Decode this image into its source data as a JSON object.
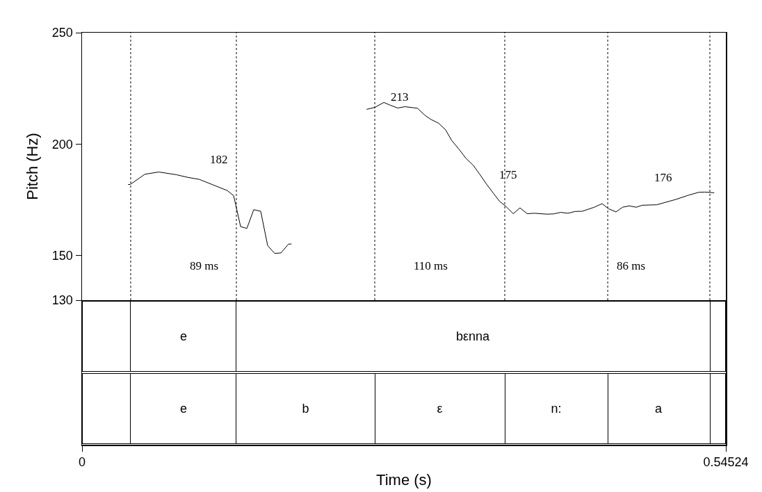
{
  "chart_data": [
    {
      "type": "line",
      "ylabel": "Pitch (Hz)",
      "xlim": [
        0,
        0.54524
      ],
      "ylim": [
        130,
        250
      ],
      "yticks": [
        130,
        150,
        200,
        250
      ],
      "tick_labels": "y",
      "marker": "none",
      "series": [
        {
          "color": "#000000",
          "x": [
            0.039,
            0.0408,
            0.0532,
            0.065,
            0.0797,
            0.0895,
            0.0993,
            0.1111,
            0.1229,
            0.1284,
            0.1343,
            0.1396,
            0.1454,
            0.1513,
            0.1572,
            0.1631,
            0.1684,
            0.1749,
            0.1774,
            0.2,
            0.241,
            0.2481,
            0.2556,
            0.2613,
            0.2674,
            0.2735,
            0.284,
            0.2907,
            0.2958,
            0.3019,
            0.3079,
            0.3131,
            0.3191,
            0.3252,
            0.3313,
            0.3364,
            0.3425,
            0.3486,
            0.3537,
            0.3587,
            0.3652,
            0.3709,
            0.377,
            0.3831,
            0.3933,
            0.3993,
            0.4055,
            0.4115,
            0.4176,
            0.4237,
            0.4338,
            0.4404,
            0.446,
            0.4522,
            0.4578,
            0.4633,
            0.4694,
            0.4745,
            0.4867,
            0.5029,
            0.5131,
            0.5222,
            0.5272,
            0.5354
          ],
          "values": [
            181.9,
            181.9,
            186.5,
            187.5,
            186.3,
            185.1,
            184.2,
            181.7,
            179.2,
            176.9,
            163,
            162.2,
            170.6,
            169.9,
            154.5,
            151,
            151.2,
            155.2,
            155.2,
            null,
            215.6,
            216.5,
            218.7,
            217.4,
            216.2,
            216.8,
            216.1,
            212.8,
            211,
            209.4,
            206.4,
            201.6,
            197.8,
            193.6,
            190.5,
            186.8,
            182.1,
            177.8,
            174.3,
            172.2,
            168.8,
            171.4,
            168.8,
            169,
            168.6,
            168.7,
            169.4,
            169,
            169.8,
            169.9,
            171.7,
            173.3,
            171,
            169.6,
            171.7,
            172.3,
            171.7,
            172.6,
            172.8,
            175.2,
            177,
            178.4,
            178.5,
            178.2
          ]
        }
      ],
      "ref_lines": [
        {
          "axis": "x",
          "value": 0.0412,
          "line_style": "dotted",
          "color": "#000000"
        },
        {
          "axis": "x",
          "value": 0.1307,
          "line_style": "dotted",
          "color": "#000000"
        },
        {
          "axis": "x",
          "value": 0.2479,
          "line_style": "dotted",
          "color": "#000000"
        },
        {
          "axis": "x",
          "value": 0.358,
          "line_style": "dotted",
          "color": "#000000"
        },
        {
          "axis": "x",
          "value": 0.4452,
          "line_style": "dotted",
          "color": "#000000"
        },
        {
          "axis": "x",
          "value": 0.5317,
          "line_style": "dotted",
          "color": "#000000"
        }
      ],
      "annotations": [
        "182",
        "213",
        "175",
        "176",
        "89 ms",
        "110 ms",
        "86 ms"
      ]
    },
    {
      "type": "bar",
      "orientation": "horizontal",
      "stacked": true,
      "xlabel": "Time (s)",
      "xlim": [
        0,
        0.54524
      ],
      "xticks": [
        0,
        0.54524
      ],
      "tick_labels": "x",
      "categories": [
        null,
        null
      ],
      "series": [
        {
          "color": "#ffffff",
          "values": [
            0.0412,
            0.0412
          ],
          "value_labels": [
            null,
            null
          ]
        },
        {
          "color": "#ffffff",
          "values": [
            0.0895,
            0.0895
          ],
          "value_labels": [
            "e",
            "e"
          ]
        },
        {
          "color": "#ffffff",
          "values": [
            0.401,
            0.1172
          ],
          "value_labels": [
            "bεnna",
            "b"
          ]
        },
        {
          "color": "#ffffff",
          "values": [
            0.0135,
            0.1101
          ],
          "value_labels": [
            null,
            "ε"
          ]
        },
        {
          "color": "#ffffff",
          "values": [
            null,
            0.0872
          ],
          "value_labels": [
            null,
            "n:"
          ]
        },
        {
          "color": "#ffffff",
          "values": [
            null,
            0.0865
          ],
          "value_labels": [
            null,
            "a"
          ]
        },
        {
          "color": "#ffffff",
          "values": [
            null,
            0.0135
          ],
          "value_labels": [
            null,
            null
          ]
        }
      ]
    }
  ]
}
